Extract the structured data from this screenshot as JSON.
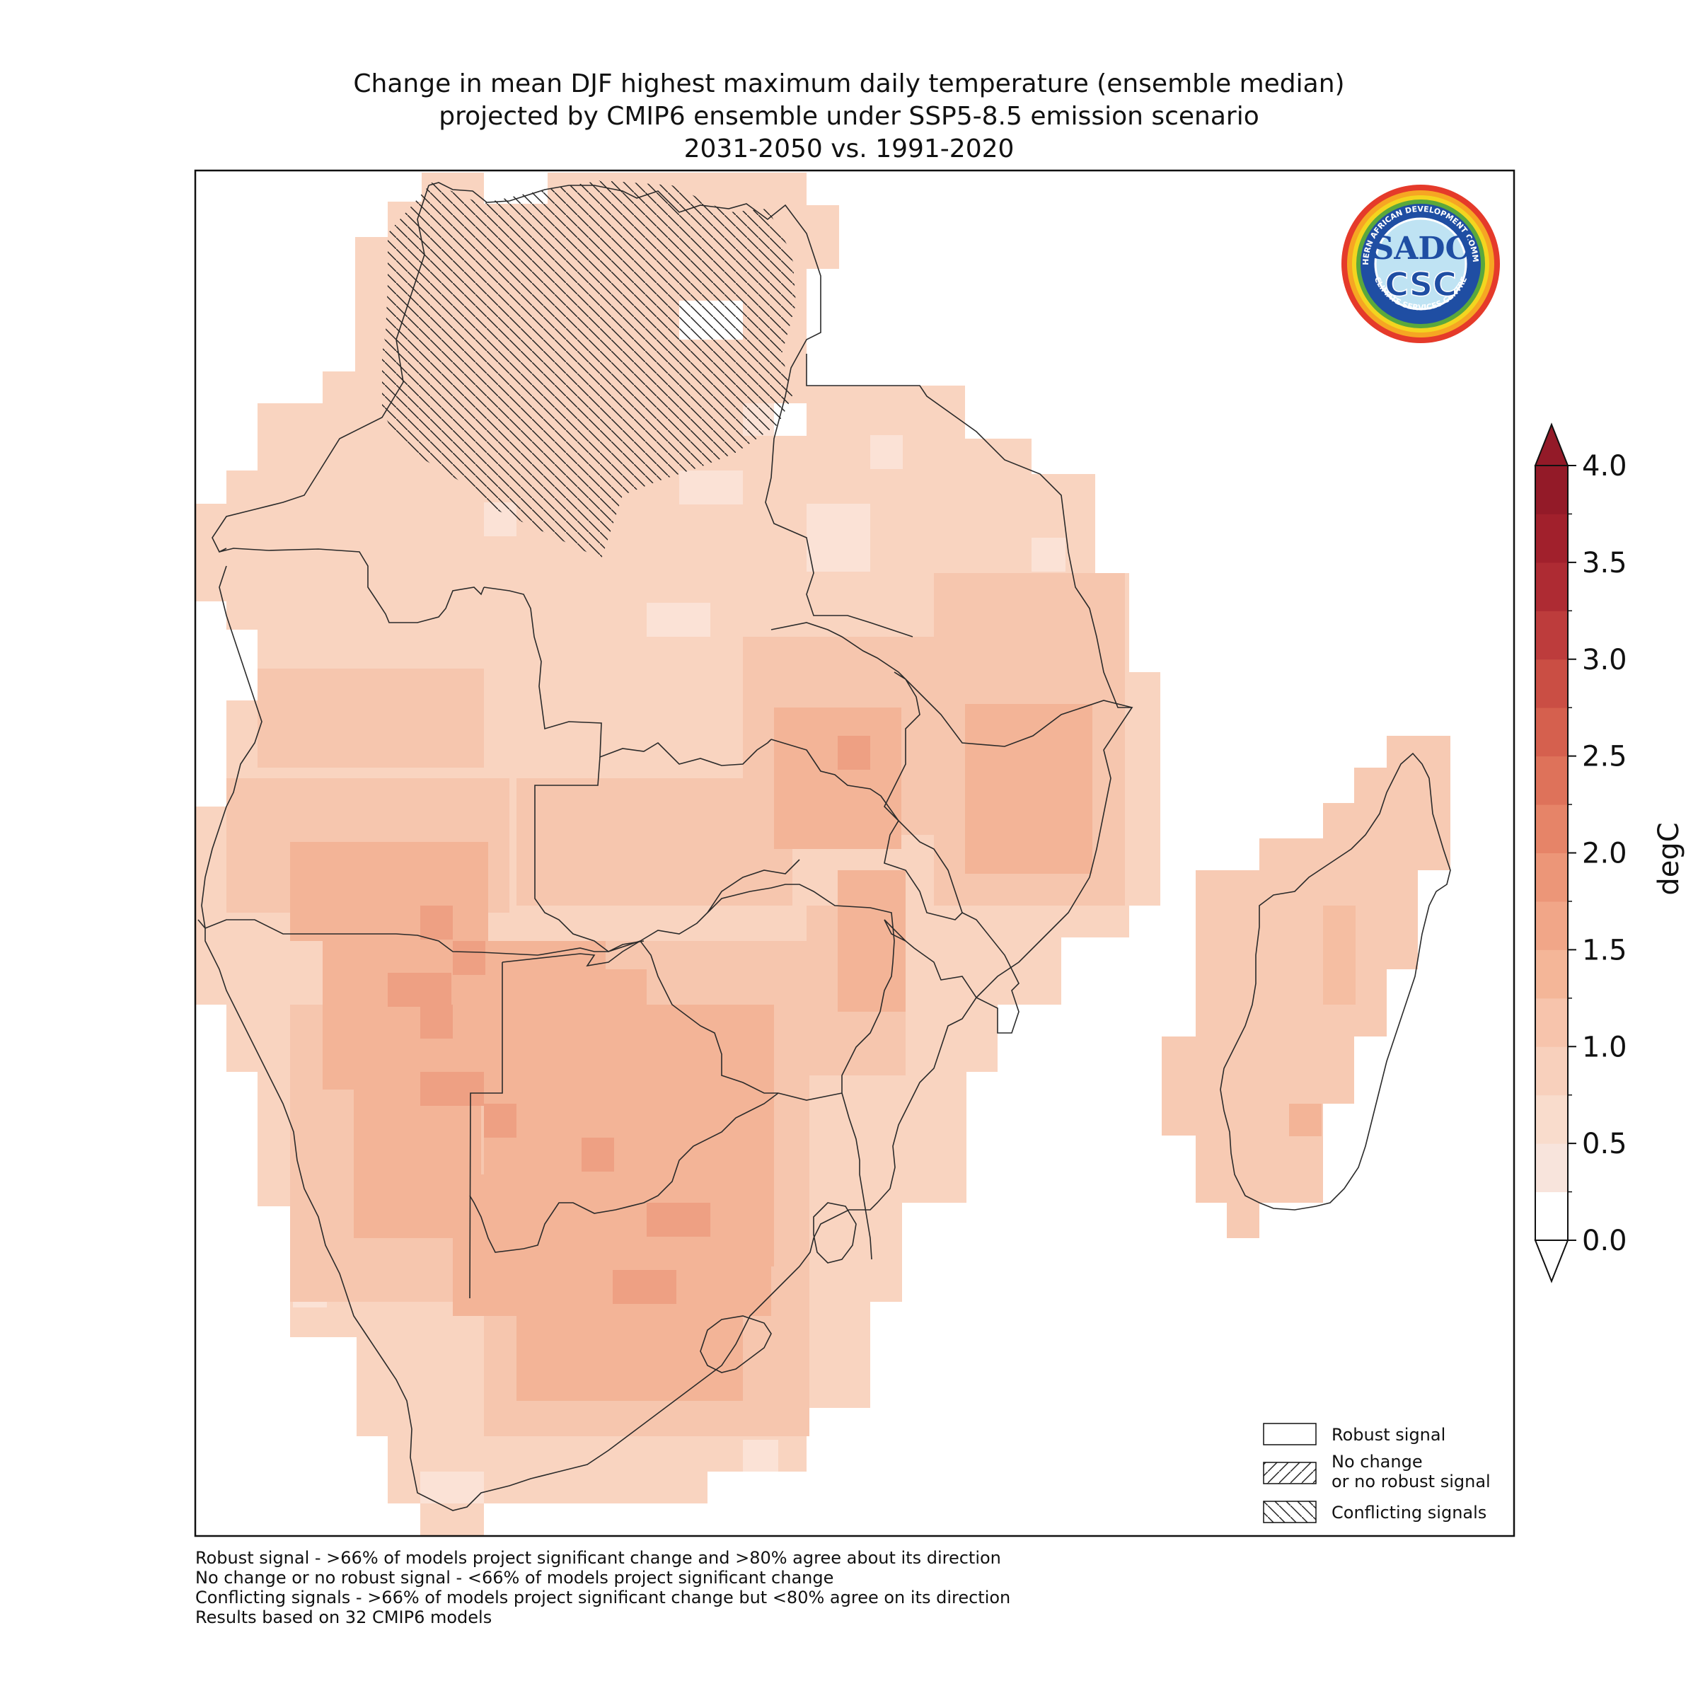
{
  "title": {
    "line1": "Change in mean DJF highest maximum daily temperature (ensemble median)",
    "line2": "projected by CMIP6 ensemble under SSP5-8.5 emission scenario",
    "line3": "2031-2050 vs. 1991-2020"
  },
  "colorbar": {
    "unit_label": "degC",
    "tick_labels": [
      "0.0",
      "0.5",
      "1.0",
      "1.5",
      "2.0",
      "2.5",
      "3.0",
      "3.5",
      "4.0"
    ],
    "range": [
      0.0,
      4.0
    ],
    "extend": "both",
    "colors": [
      "#ffffff",
      "#f8e4dc",
      "#f9dccc",
      "#f8d0bc",
      "#f7c4ac",
      "#f4b698",
      "#f1a688",
      "#ec9678",
      "#e68468",
      "#de725a",
      "#d5604e",
      "#ca4e44",
      "#bd3c3c",
      "#ae2b33",
      "#a1202c",
      "#931a28"
    ]
  },
  "logo": {
    "arc_top": "SOUTHERN AFRICAN DEVELOPMENT COMMUNITY",
    "arc_bottom": "CLIMATE SERVICES CENTRE",
    "line1": "SADC",
    "line2": "CSC"
  },
  "legend": {
    "items": [
      {
        "label": "Robust signal",
        "pattern": "none"
      },
      {
        "label": "No change\nor no robust signal",
        "pattern": "forward-hatch"
      },
      {
        "label": "Conflicting signals",
        "pattern": "back-hatch"
      }
    ]
  },
  "notes": [
    "Robust signal - >66% of models project significant change and >80% agree about its direction",
    "No change or no robust signal - <66% of models project significant change",
    "Conflicting signals - >66% of models project significant change but <80% agree on its direction",
    "Results based on 32 CMIP6 models"
  ],
  "map": {
    "region": "Southern Africa (SADC) and Madagascar",
    "value_range_shown": [
      0.75,
      2.25
    ],
    "colors": {
      "lowest": "#fae4da",
      "low": "#f9dccc",
      "mid": "#f8d0bc",
      "high": "#f5bea2",
      "highest": "#efa486"
    },
    "hatched_region": "conflicting signals over northern DR Congo"
  }
}
